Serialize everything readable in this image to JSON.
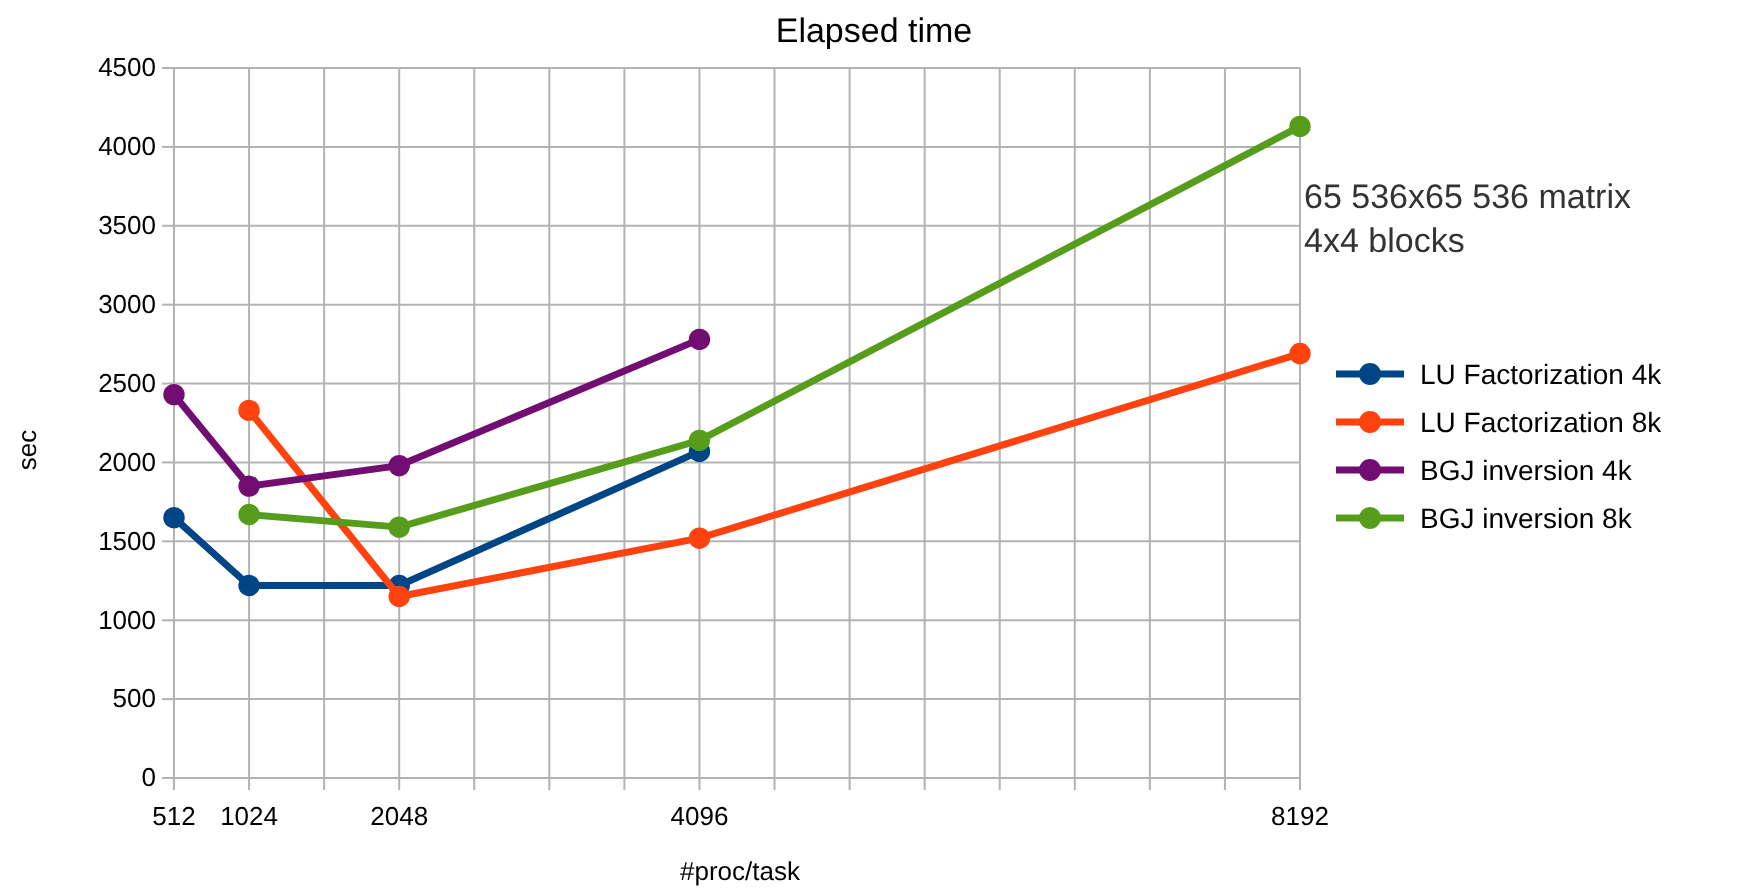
{
  "chart_data": {
    "type": "line",
    "title": "Elapsed time",
    "xlabel": "#proc/task",
    "ylabel": "sec",
    "annotations": [
      "65 536x65 536 matrix",
      "4x4 blocks"
    ],
    "xlim": [
      512,
      8192
    ],
    "xticks": [
      512,
      1024,
      {
        "value": 1536,
        "label": null
      },
      2048,
      {
        "value": 2560,
        "label": null
      },
      {
        "value": 3072,
        "label": null
      },
      {
        "value": 3584,
        "label": null
      },
      4096,
      {
        "value": 4608,
        "label": null
      },
      {
        "value": 5120,
        "label": null
      },
      {
        "value": 5632,
        "label": null
      },
      {
        "value": 6144,
        "label": null
      },
      {
        "value": 6656,
        "label": null
      },
      {
        "value": 7168,
        "label": null
      },
      {
        "value": 7680,
        "label": null
      },
      8192
    ],
    "ylim": [
      0,
      4500
    ],
    "yticks": [
      0,
      500,
      1000,
      1500,
      2000,
      2500,
      3000,
      3500,
      4000,
      4500
    ],
    "grid": true,
    "legend": "right",
    "marker": "circle",
    "line_style": "solid",
    "series": [
      {
        "name": "LU Factorization 4k",
        "color": "#004586",
        "x": [
          512,
          1024,
          2048,
          4096
        ],
        "values": [
          1650,
          1220,
          1220,
          2070
        ]
      },
      {
        "name": "LU Factorization 8k",
        "color": "#ff420e",
        "x": [
          1024,
          2048,
          4096,
          8192
        ],
        "values": [
          2330,
          1150,
          1520,
          2690
        ]
      },
      {
        "name": "BGJ inversion 4k",
        "color": "#720e73",
        "x": [
          512,
          1024,
          2048,
          4096
        ],
        "values": [
          2430,
          1850,
          1980,
          2780
        ]
      },
      {
        "name": "BGJ inversion 8k",
        "color": "#579d1c",
        "x": [
          1024,
          2048,
          4096,
          8192
        ],
        "values": [
          1670,
          1590,
          2140,
          4130
        ]
      }
    ]
  }
}
